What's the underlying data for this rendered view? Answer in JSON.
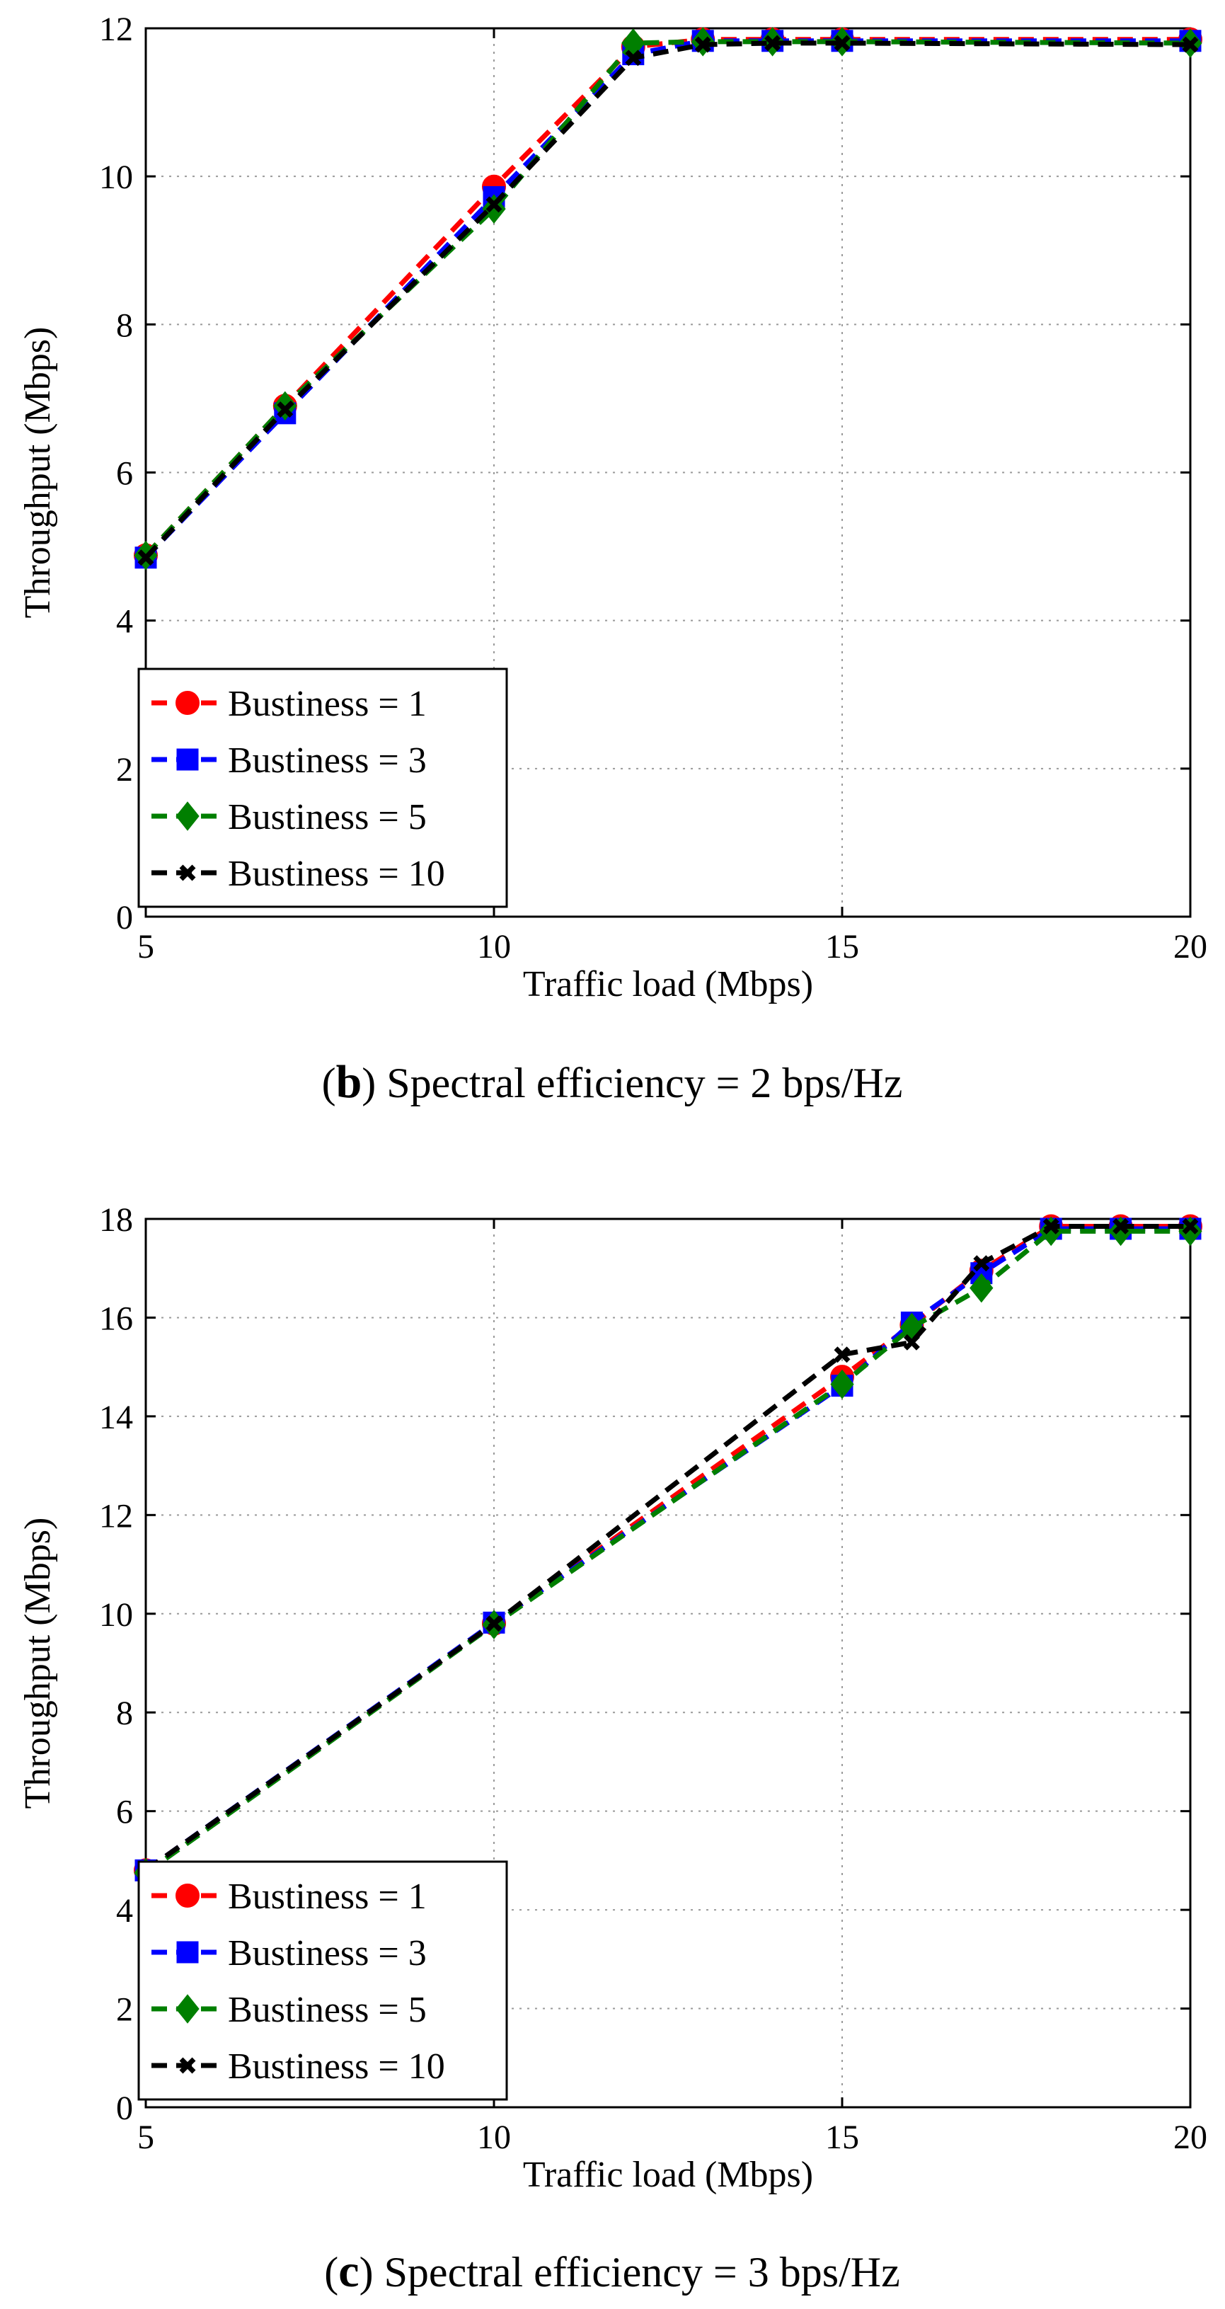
{
  "chart_data": [
    {
      "type": "line",
      "panel_label": "b",
      "caption": "Spectral efficiency = 2 bps/Hz",
      "xlabel": "Traffic load (Mbps)",
      "ylabel": "Throughput (Mbps)",
      "xlim": [
        5,
        20
      ],
      "ylim": [
        0,
        12
      ],
      "xticks": [
        5,
        10,
        15,
        20
      ],
      "yticks": [
        0,
        2,
        4,
        6,
        8,
        10,
        12
      ],
      "grid": true,
      "legend_position": "bottom-left",
      "x": [
        5,
        7,
        10,
        12,
        13,
        14,
        15,
        20
      ],
      "series": [
        {
          "name": "Bustiness = 1",
          "color": "#ff0000",
          "marker": "circle",
          "values": [
            4.88,
            6.9,
            9.86,
            11.75,
            11.85,
            11.85,
            11.85,
            11.85
          ]
        },
        {
          "name": "Bustiness = 3",
          "color": "#0000ff",
          "marker": "square",
          "values": [
            4.85,
            6.8,
            9.72,
            11.65,
            11.83,
            11.83,
            11.83,
            11.83
          ]
        },
        {
          "name": "Bustiness = 5",
          "color": "#007f00",
          "marker": "diamond",
          "values": [
            4.88,
            6.9,
            9.56,
            11.8,
            11.82,
            11.82,
            11.82,
            11.8
          ]
        },
        {
          "name": "Bustiness = 10",
          "color": "#000000",
          "marker": "x",
          "values": [
            4.85,
            6.85,
            9.62,
            11.6,
            11.78,
            11.8,
            11.8,
            11.78
          ]
        }
      ]
    },
    {
      "type": "line",
      "panel_label": "c",
      "caption": "Spectral efficiency = 3 bps/Hz",
      "xlabel": "Traffic load (Mbps)",
      "ylabel": "Throughput (Mbps)",
      "xlim": [
        5,
        20
      ],
      "ylim": [
        0,
        18
      ],
      "xticks": [
        5,
        10,
        15,
        20
      ],
      "yticks": [
        0,
        2,
        4,
        6,
        8,
        10,
        12,
        14,
        16,
        18
      ],
      "grid": true,
      "legend_position": "bottom-left",
      "x": [
        5,
        10,
        15,
        16,
        17,
        18,
        19,
        20
      ],
      "series": [
        {
          "name": "Bustiness = 1",
          "color": "#ff0000",
          "marker": "circle",
          "values": [
            4.8,
            9.8,
            14.8,
            15.85,
            16.95,
            17.85,
            17.85,
            17.85
          ]
        },
        {
          "name": "Bustiness = 3",
          "color": "#0000ff",
          "marker": "square",
          "values": [
            4.8,
            9.82,
            14.62,
            15.9,
            16.9,
            17.8,
            17.8,
            17.8
          ]
        },
        {
          "name": "Bustiness = 5",
          "color": "#007f00",
          "marker": "diamond",
          "values": [
            4.75,
            9.78,
            14.65,
            15.8,
            16.6,
            17.75,
            17.75,
            17.75
          ]
        },
        {
          "name": "Bustiness = 10",
          "color": "#000000",
          "marker": "x",
          "values": [
            4.8,
            9.8,
            15.25,
            15.5,
            17.1,
            17.85,
            17.85,
            17.85
          ]
        }
      ]
    }
  ]
}
